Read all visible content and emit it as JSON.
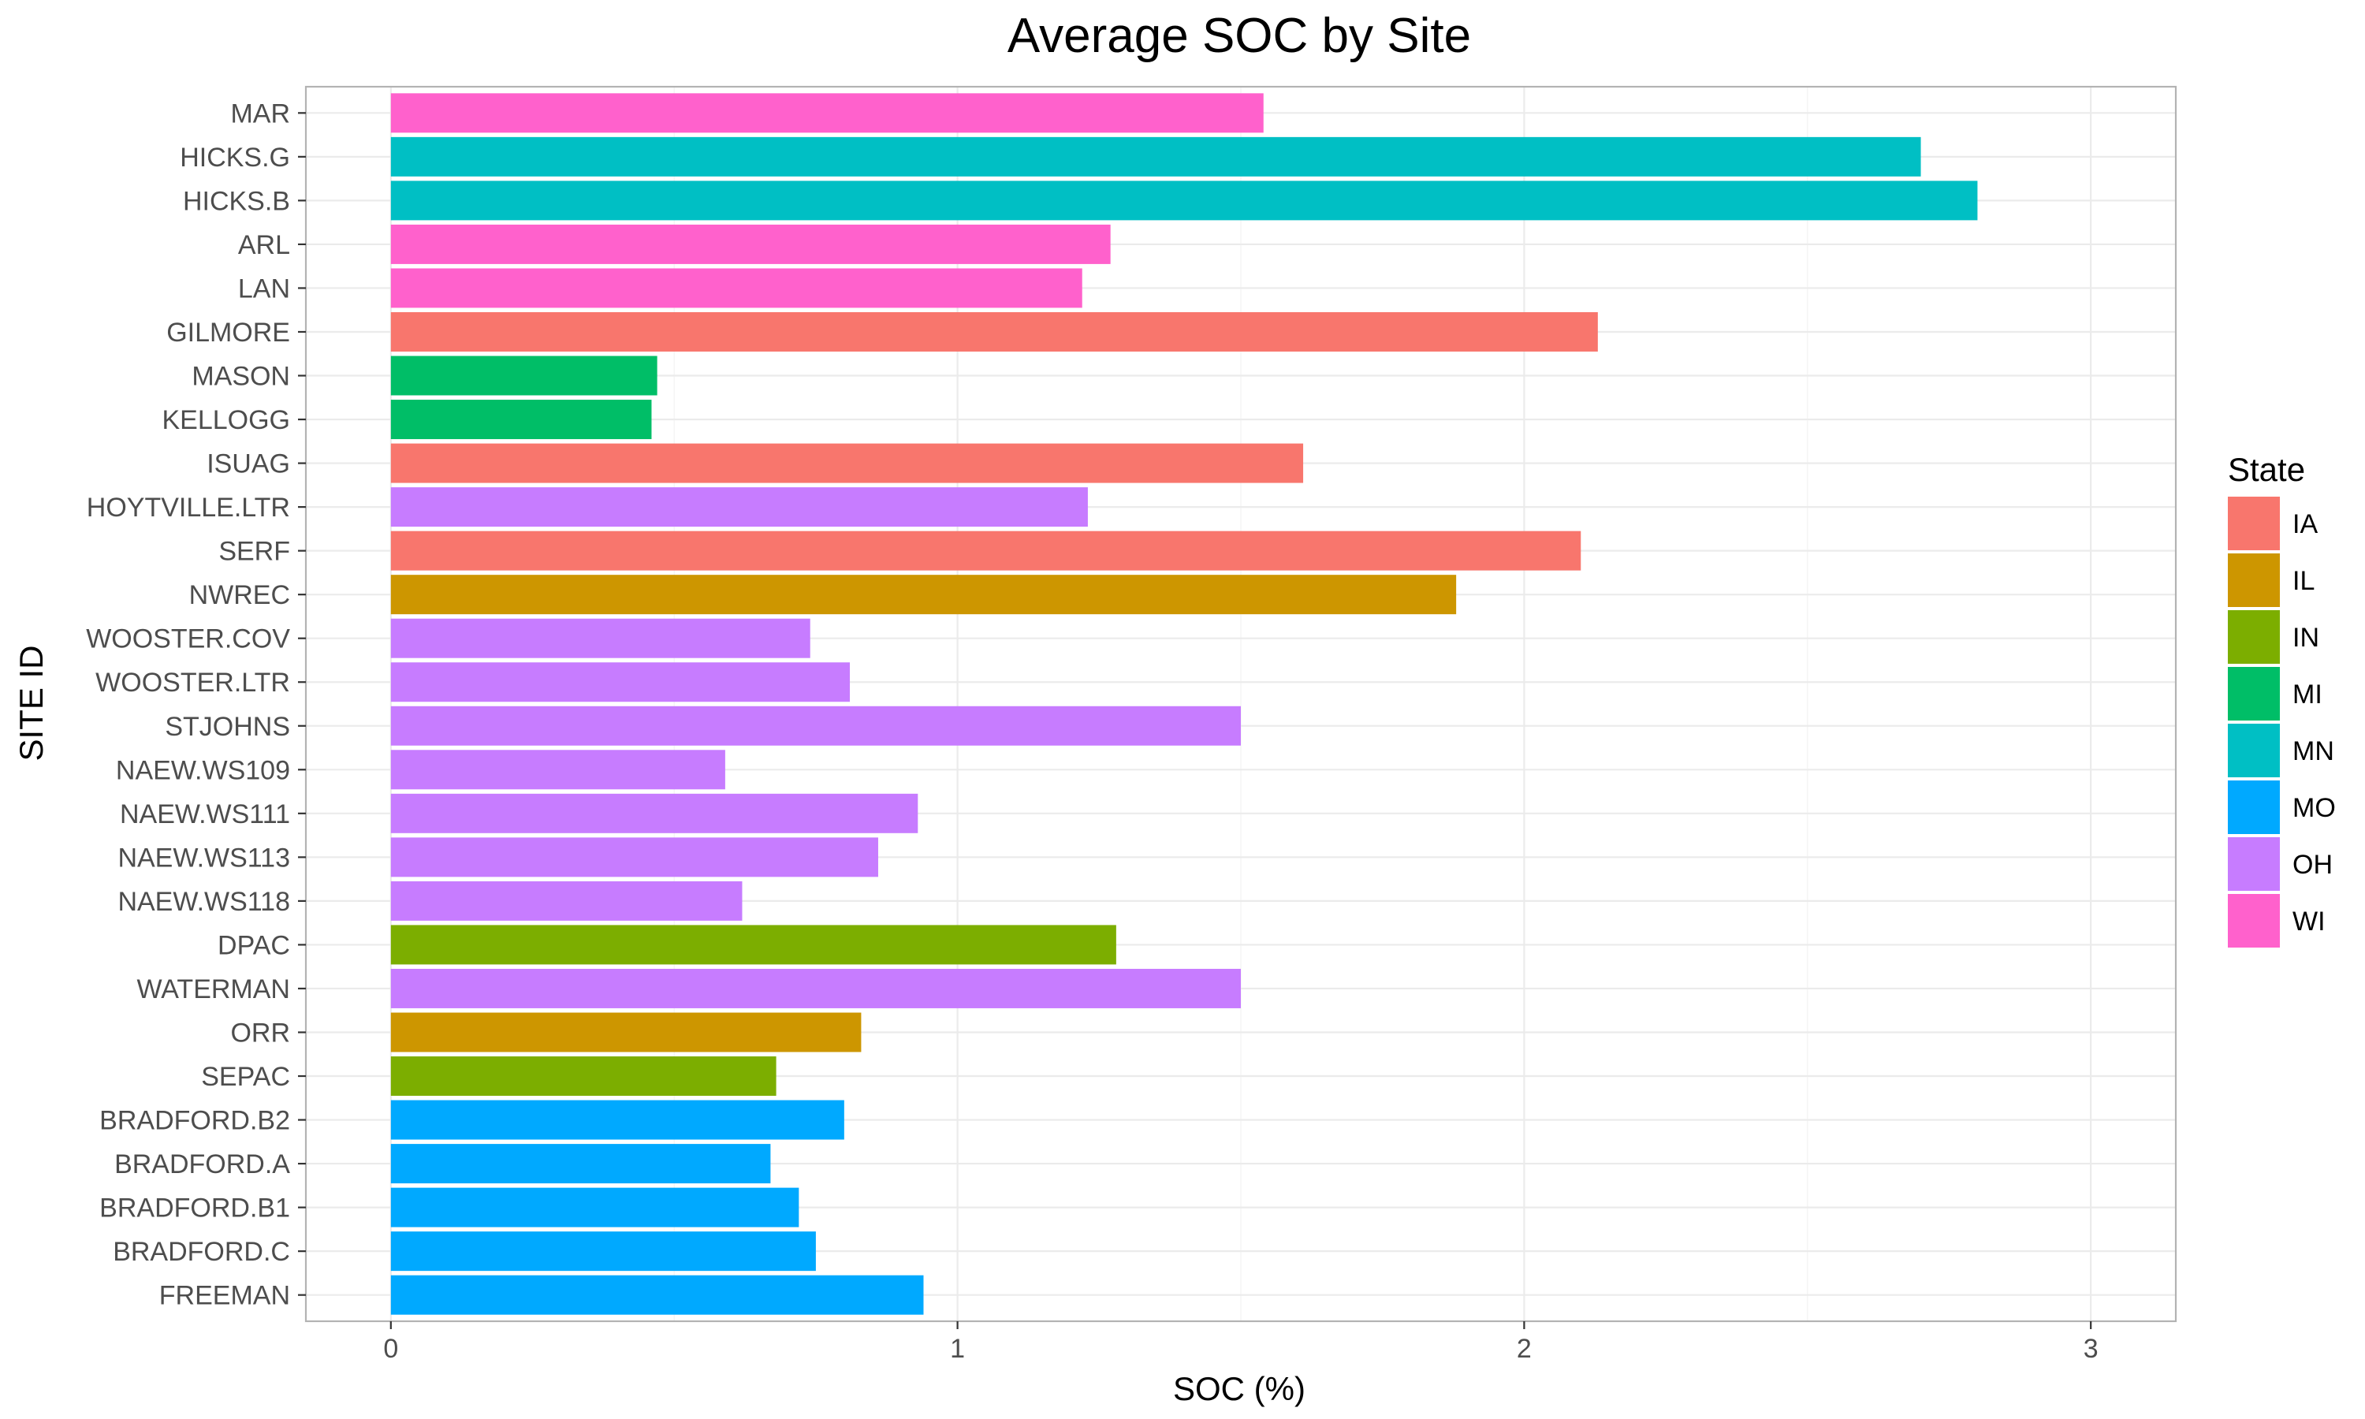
{
  "chart_data": {
    "type": "bar",
    "orientation": "horizontal",
    "title": "Average SOC by Site",
    "xlabel": "SOC (%)",
    "ylabel": "SITE ID",
    "xlim": [
      -0.15,
      3.15
    ],
    "x_ticks": [
      0,
      1,
      2,
      3
    ],
    "x_tick_labels": [
      "0",
      "1",
      "2",
      "3"
    ],
    "grid": true,
    "legend_placement": "right",
    "legend": {
      "title": "State",
      "entries": [
        {
          "label": "IA",
          "color": "#F8766D"
        },
        {
          "label": "IL",
          "color": "#CD9600"
        },
        {
          "label": "IN",
          "color": "#7CAE00"
        },
        {
          "label": "MI",
          "color": "#00BE67"
        },
        {
          "label": "MN",
          "color": "#00BFC4"
        },
        {
          "label": "MO",
          "color": "#00A9FF"
        },
        {
          "label": "OH",
          "color": "#C77CFF"
        },
        {
          "label": "WI",
          "color": "#FF61CC"
        }
      ]
    },
    "bars": [
      {
        "site": "MAR",
        "value": 1.54,
        "state": "WI"
      },
      {
        "site": "HICKS.G",
        "value": 2.7,
        "state": "MN"
      },
      {
        "site": "HICKS.B",
        "value": 2.8,
        "state": "MN"
      },
      {
        "site": "ARL",
        "value": 1.27,
        "state": "WI"
      },
      {
        "site": "LAN",
        "value": 1.22,
        "state": "WI"
      },
      {
        "site": "GILMORE",
        "value": 2.13,
        "state": "IA"
      },
      {
        "site": "MASON",
        "value": 0.47,
        "state": "MI"
      },
      {
        "site": "KELLOGG",
        "value": 0.46,
        "state": "MI"
      },
      {
        "site": "ISUAG",
        "value": 1.61,
        "state": "IA"
      },
      {
        "site": "HOYTVILLE.LTR",
        "value": 1.23,
        "state": "OH"
      },
      {
        "site": "SERF",
        "value": 2.1,
        "state": "IA"
      },
      {
        "site": "NWREC",
        "value": 1.88,
        "state": "IL"
      },
      {
        "site": "WOOSTER.COV",
        "value": 0.74,
        "state": "OH"
      },
      {
        "site": "WOOSTER.LTR",
        "value": 0.81,
        "state": "OH"
      },
      {
        "site": "STJOHNS",
        "value": 1.5,
        "state": "OH"
      },
      {
        "site": "NAEW.WS109",
        "value": 0.59,
        "state": "OH"
      },
      {
        "site": "NAEW.WS111",
        "value": 0.93,
        "state": "OH"
      },
      {
        "site": "NAEW.WS113",
        "value": 0.86,
        "state": "OH"
      },
      {
        "site": "NAEW.WS118",
        "value": 0.62,
        "state": "OH"
      },
      {
        "site": "DPAC",
        "value": 1.28,
        "state": "IN"
      },
      {
        "site": "WATERMAN",
        "value": 1.5,
        "state": "OH"
      },
      {
        "site": "ORR",
        "value": 0.83,
        "state": "IL"
      },
      {
        "site": "SEPAC",
        "value": 0.68,
        "state": "IN"
      },
      {
        "site": "BRADFORD.B2",
        "value": 0.8,
        "state": "MO"
      },
      {
        "site": "BRADFORD.A",
        "value": 0.67,
        "state": "MO"
      },
      {
        "site": "BRADFORD.B1",
        "value": 0.72,
        "state": "MO"
      },
      {
        "site": "BRADFORD.C",
        "value": 0.75,
        "state": "MO"
      },
      {
        "site": "FREEMAN",
        "value": 0.94,
        "state": "MO"
      }
    ]
  }
}
